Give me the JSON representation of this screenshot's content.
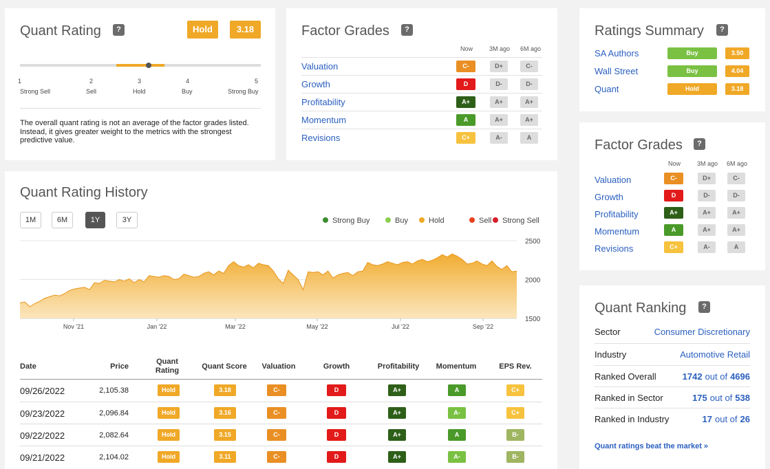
{
  "quant_rating": {
    "title": "Quant Rating",
    "help": "?",
    "rating_label": "Hold",
    "score": "3.18",
    "scale": [
      {
        "num": "1",
        "label": "Strong Sell"
      },
      {
        "num": "2",
        "label": "Sell"
      },
      {
        "num": "3",
        "label": "Hold"
      },
      {
        "num": "4",
        "label": "Buy"
      },
      {
        "num": "5",
        "label": "Strong Buy"
      }
    ],
    "description": "The overall quant rating is not an average of the factor grades listed. Instead, it gives greater weight to the metrics with the strongest predictive value."
  },
  "factor_grades_main": {
    "title": "Factor Grades",
    "help": "?",
    "columns": [
      "Now",
      "3M ago",
      "6M ago"
    ],
    "rows": [
      {
        "label": "Valuation",
        "now": "C-",
        "m3": "D+",
        "m6": "C-"
      },
      {
        "label": "Growth",
        "now": "D",
        "m3": "D-",
        "m6": "D-"
      },
      {
        "label": "Profitability",
        "now": "A+",
        "m3": "A+",
        "m6": "A+"
      },
      {
        "label": "Momentum",
        "now": "A",
        "m3": "A+",
        "m6": "A+"
      },
      {
        "label": "Revisions",
        "now": "C+",
        "m3": "A-",
        "m6": "A"
      }
    ]
  },
  "ratings_summary": {
    "title": "Ratings Summary",
    "help": "?",
    "rows": [
      {
        "label": "SA Authors",
        "rating": "Buy",
        "score": "3.50"
      },
      {
        "label": "Wall Street",
        "rating": "Buy",
        "score": "4.04"
      },
      {
        "label": "Quant",
        "rating": "Hold",
        "score": "3.18"
      }
    ]
  },
  "factor_grades_side": {
    "title": "Factor Grades",
    "help": "?",
    "columns": [
      "Now",
      "3M ago",
      "6M ago"
    ],
    "rows": [
      {
        "label": "Valuation",
        "now": "C-",
        "m3": "D+",
        "m6": "C-"
      },
      {
        "label": "Growth",
        "now": "D",
        "m3": "D-",
        "m6": "D-"
      },
      {
        "label": "Profitability",
        "now": "A+",
        "m3": "A+",
        "m6": "A+"
      },
      {
        "label": "Momentum",
        "now": "A",
        "m3": "A+",
        "m6": "A+"
      },
      {
        "label": "Revisions",
        "now": "C+",
        "m3": "A-",
        "m6": "A"
      }
    ]
  },
  "history": {
    "title": "Quant Rating History",
    "ranges": [
      "1M",
      "6M",
      "1Y",
      "3Y"
    ],
    "active_range": "1Y",
    "legend": [
      {
        "label": "Strong Buy",
        "color": "#3c8d2f"
      },
      {
        "label": "Buy",
        "color": "#8ccf4d"
      },
      {
        "label": "Hold",
        "color": "#f0a827"
      },
      {
        "label": "Sell",
        "color": "#e8421e"
      },
      {
        "label": "Strong Sell",
        "color": "#d81e2b"
      }
    ],
    "table": {
      "headers": [
        "Date",
        "Price",
        "Quant Rating",
        "Quant Score",
        "Valuation",
        "Growth",
        "Profitability",
        "Momentum",
        "EPS Rev."
      ],
      "rows": [
        {
          "date": "09/26/2022",
          "price": "2,105.38",
          "rating": "Hold",
          "score": "3.18",
          "valuation": "C-",
          "growth": "D",
          "profitability": "A+",
          "momentum": "A",
          "eps": "C+"
        },
        {
          "date": "09/23/2022",
          "price": "2,096.84",
          "rating": "Hold",
          "score": "3.16",
          "valuation": "C-",
          "growth": "D",
          "profitability": "A+",
          "momentum": "A-",
          "eps": "C+"
        },
        {
          "date": "09/22/2022",
          "price": "2,082.64",
          "rating": "Hold",
          "score": "3.15",
          "valuation": "C-",
          "growth": "D",
          "profitability": "A+",
          "momentum": "A",
          "eps": "B-"
        },
        {
          "date": "09/21/2022",
          "price": "2,104.02",
          "rating": "Hold",
          "score": "3.11",
          "valuation": "C-",
          "growth": "D",
          "profitability": "A+",
          "momentum": "A-",
          "eps": "B-"
        }
      ]
    }
  },
  "chart_data": {
    "type": "area",
    "title": "",
    "xlabel": "",
    "ylabel": "",
    "x_ticks": [
      "Nov '21",
      "Jan '22",
      "Mar '22",
      "May '22",
      "Jul '22",
      "Sep '22"
    ],
    "y_ticks": [
      1500,
      2000,
      2500
    ],
    "ylim": [
      1500,
      2500
    ],
    "series": [
      {
        "color": "#f0a827",
        "values": [
          1700,
          1710,
          1650,
          1690,
          1720,
          1760,
          1780,
          1800,
          1790,
          1820,
          1860,
          1880,
          1890,
          1900,
          1870,
          1960,
          1950,
          1990,
          1980,
          1970,
          2000,
          1980,
          2010,
          1960,
          2000,
          1970,
          2050,
          2040,
          2030,
          2050,
          2040,
          2000,
          2010,
          2070,
          2050,
          2030,
          2040,
          2080,
          2100,
          2060,
          2110,
          2080,
          2180,
          2230,
          2180,
          2160,
          2190,
          2150,
          2210,
          2190,
          2180,
          2110,
          2010,
          1950,
          2120,
          2060,
          2000,
          1870,
          2100,
          2090,
          2100,
          2060,
          2110,
          2020,
          2060,
          2080,
          2090,
          2050,
          2100,
          2110,
          2220,
          2190,
          2180,
          2200,
          2230,
          2210,
          2190,
          2220,
          2230,
          2200,
          2240,
          2260,
          2230,
          2250,
          2280,
          2320,
          2290,
          2330,
          2300,
          2260,
          2200,
          2210,
          2240,
          2200,
          2180,
          2240,
          2170,
          2130,
          2180,
          2100,
          2110
        ]
      }
    ]
  },
  "ranking": {
    "title": "Quant Ranking",
    "help": "?",
    "rows": [
      {
        "label": "Sector",
        "value": "Consumer Discretionary"
      },
      {
        "label": "Industry",
        "value": "Automotive Retail"
      }
    ],
    "ranks": [
      {
        "label": "Ranked Overall",
        "rank": "1742",
        "of": "out of",
        "total": "4696"
      },
      {
        "label": "Ranked in Sector",
        "rank": "175",
        "of": "out of",
        "total": "538"
      },
      {
        "label": "Ranked in Industry",
        "rank": "17",
        "of": "out of",
        "total": "26"
      }
    ],
    "link": "Quant ratings beat the market »"
  }
}
